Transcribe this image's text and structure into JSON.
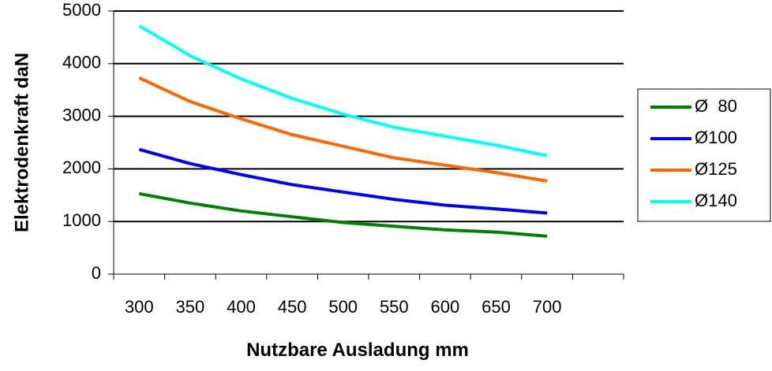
{
  "chart_data": {
    "type": "line",
    "xlabel": "Nutzbare Ausladung  mm",
    "ylabel": "Elektrodenkraft daN",
    "x": [
      300,
      350,
      400,
      450,
      500,
      550,
      600,
      650,
      700
    ],
    "x_tick_labels": [
      "300",
      "350",
      "400",
      "450",
      "500",
      "550",
      "600",
      "650",
      "700"
    ],
    "ylim": [
      0,
      5000
    ],
    "y_ticks": [
      0,
      1000,
      2000,
      3000,
      4000,
      5000
    ],
    "y_tick_labels": [
      "0",
      "1000",
      "2000",
      "3000",
      "4000",
      "5000"
    ],
    "grid": "horizontal",
    "legend_position": "right",
    "series": [
      {
        "name": "Ø  80",
        "color": "#008000",
        "values": [
          1530,
          1350,
          1200,
          1090,
          980,
          910,
          840,
          800,
          720
        ]
      },
      {
        "name": "Ø100",
        "color": "#0000FF",
        "values": [
          2370,
          2100,
          1890,
          1700,
          1560,
          1420,
          1310,
          1240,
          1160
        ]
      },
      {
        "name": "Ø125",
        "color": "#FF6600",
        "values": [
          3730,
          3280,
          2950,
          2650,
          2430,
          2210,
          2070,
          1930,
          1770
        ]
      },
      {
        "name": "Ø140",
        "color": "#00FFFF",
        "values": [
          4720,
          4150,
          3710,
          3340,
          3040,
          2790,
          2620,
          2450,
          2250
        ]
      }
    ]
  }
}
